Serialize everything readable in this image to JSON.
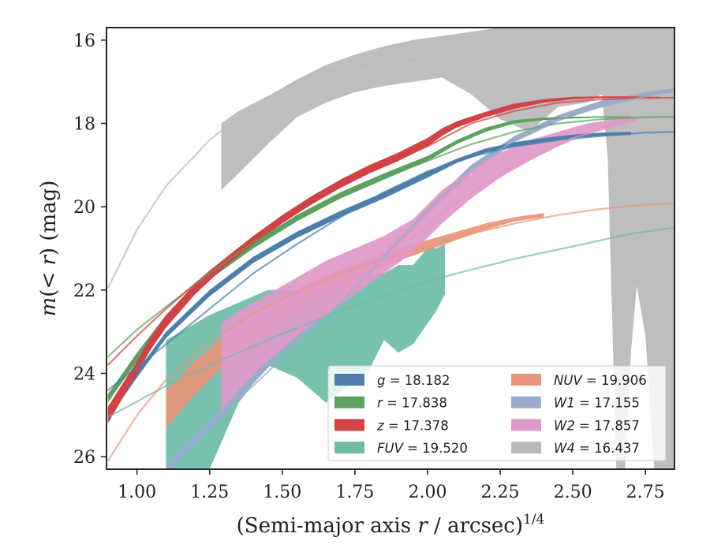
{
  "chart_data": {
    "type": "line",
    "xlabel": "(Semi-major axis r / arcsec)^1/4",
    "xlabel_parts": {
      "pre": "(Semi-major axis ",
      "var": "r",
      "mid": " / arcsec)",
      "sup": "1/4"
    },
    "ylabel": "m(< r) (mag)",
    "ylabel_parts": {
      "m": "m",
      "open": "(",
      "lt": "< ",
      "r": "r",
      "close": ") (mag)"
    },
    "xlim": [
      0.895,
      2.85
    ],
    "ylim": [
      26.3,
      15.7
    ],
    "y_inverted": true,
    "x_ticks": [
      1.0,
      1.25,
      1.5,
      1.75,
      2.0,
      2.25,
      2.5,
      2.75
    ],
    "x_tick_labels": [
      "1.00",
      "1.25",
      "1.50",
      "1.75",
      "2.00",
      "2.25",
      "2.50",
      "2.75"
    ],
    "y_ticks": [
      16,
      18,
      20,
      22,
      24,
      26
    ],
    "y_tick_labels": [
      "16",
      "18",
      "20",
      "22",
      "24",
      "26"
    ],
    "grid": false,
    "legend_position": "lower-right",
    "series": [
      {
        "name": "g = 18.182",
        "legend_var": "g",
        "legend_value": "18.182",
        "color": "#4c7fad",
        "fit": {
          "x": [
            0.9,
            1.0,
            1.1,
            1.25,
            1.4,
            1.55,
            1.7,
            1.85,
            2.0,
            2.15,
            2.3,
            2.45,
            2.6,
            2.75,
            2.85
          ],
          "y": [
            24.4,
            23.85,
            23.3,
            22.45,
            21.6,
            20.9,
            20.25,
            19.65,
            19.15,
            18.8,
            18.55,
            18.4,
            18.3,
            18.22,
            18.2
          ]
        },
        "band": {
          "x": [
            0.9,
            1.0,
            1.1,
            1.25,
            1.4,
            1.55,
            1.7,
            1.85,
            2.0,
            2.1,
            2.2,
            2.3,
            2.4,
            2.5,
            2.6,
            2.7
          ],
          "y_lo": [
            25.1,
            24.1,
            23.15,
            22.15,
            21.35,
            20.75,
            20.25,
            19.8,
            19.3,
            18.95,
            18.7,
            18.55,
            18.45,
            18.35,
            18.3,
            18.28
          ],
          "y_hi": [
            24.9,
            23.95,
            23.0,
            22.0,
            21.2,
            20.6,
            20.1,
            19.65,
            19.15,
            18.85,
            18.6,
            18.45,
            18.35,
            18.27,
            18.22,
            18.2
          ]
        }
      },
      {
        "name": "r = 17.838",
        "legend_var": "r",
        "legend_value": "17.838",
        "color": "#5ba25e",
        "fit": {
          "x": [
            0.9,
            1.0,
            1.1,
            1.25,
            1.4,
            1.55,
            1.7,
            1.85,
            2.0,
            2.15,
            2.3,
            2.45,
            2.6,
            2.75,
            2.85
          ],
          "y": [
            23.6,
            22.95,
            22.4,
            21.6,
            20.85,
            20.25,
            19.7,
            19.3,
            18.9,
            18.5,
            18.2,
            18.0,
            17.9,
            17.85,
            17.84
          ]
        },
        "band": {
          "x": [
            0.9,
            1.0,
            1.1,
            1.25,
            1.4,
            1.55,
            1.7,
            1.85,
            2.0,
            2.1,
            2.2,
            2.3,
            2.4,
            2.5,
            2.6,
            2.7
          ],
          "y_lo": [
            24.7,
            23.7,
            22.75,
            21.75,
            21.0,
            20.35,
            19.8,
            19.35,
            18.9,
            18.5,
            18.2,
            18.0,
            17.92,
            17.88,
            17.86,
            17.85
          ],
          "y_hi": [
            24.5,
            23.5,
            22.6,
            21.6,
            20.85,
            20.2,
            19.65,
            19.2,
            18.78,
            18.4,
            18.1,
            17.92,
            17.86,
            17.84,
            17.83,
            17.83
          ]
        }
      },
      {
        "name": "z = 17.378",
        "legend_var": "z",
        "legend_value": "17.378",
        "color": "#d24245",
        "fit": {
          "x": [
            0.9,
            1.0,
            1.1,
            1.25,
            1.4,
            1.55,
            1.7,
            1.85,
            2.0,
            2.15,
            2.3,
            2.45,
            2.6,
            2.75,
            2.85
          ],
          "y": [
            23.8,
            23.1,
            22.45,
            21.55,
            20.75,
            20.1,
            19.5,
            19.0,
            18.55,
            18.0,
            17.7,
            17.5,
            17.42,
            17.39,
            17.38
          ]
        },
        "band": {
          "x": [
            0.9,
            1.0,
            1.05,
            1.1,
            1.2,
            1.3,
            1.4,
            1.5,
            1.6,
            1.7,
            1.8,
            1.9,
            2.0,
            2.05,
            2.1,
            2.2,
            2.3,
            2.4,
            2.5,
            2.6,
            2.7,
            2.8
          ],
          "y_lo": [
            25.2,
            24.0,
            23.4,
            22.9,
            22.1,
            21.45,
            20.9,
            20.4,
            19.95,
            19.55,
            19.2,
            18.9,
            18.55,
            18.3,
            18.1,
            17.85,
            17.65,
            17.5,
            17.42,
            17.39,
            17.38,
            17.38
          ],
          "y_hi": [
            24.8,
            23.7,
            23.1,
            22.6,
            21.85,
            21.25,
            20.7,
            20.2,
            19.75,
            19.35,
            19.0,
            18.7,
            18.35,
            18.12,
            17.95,
            17.72,
            17.52,
            17.42,
            17.36,
            17.35,
            17.35,
            17.36
          ]
        }
      },
      {
        "name": "FUV = 19.520",
        "legend_var": "FUV",
        "legend_value": "19.520",
        "color": "#6dbca7",
        "fit": {
          "x": [
            0.9,
            1.1,
            1.3,
            1.5,
            1.7,
            1.9,
            2.1,
            2.3,
            2.5,
            2.7,
            2.85
          ],
          "y": [
            25.05,
            24.3,
            23.65,
            23.05,
            22.5,
            22.0,
            21.6,
            21.25,
            20.95,
            20.65,
            20.5
          ]
        },
        "band": {
          "x": [
            1.1,
            1.15,
            1.25,
            1.35,
            1.45,
            1.55,
            1.65,
            1.75,
            1.8,
            1.85,
            1.9,
            1.95,
            2.0,
            2.03,
            2.06
          ],
          "y_lo": [
            26.3,
            26.3,
            26.3,
            24.7,
            23.8,
            24.1,
            24.7,
            24.2,
            23.9,
            23.2,
            23.5,
            23.3,
            22.8,
            22.5,
            22.1
          ],
          "y_hi": [
            23.2,
            23.0,
            22.6,
            22.3,
            22.0,
            22.0,
            22.0,
            21.8,
            21.6,
            21.6,
            21.4,
            21.4,
            21.0,
            21.0,
            20.9
          ]
        }
      },
      {
        "name": "NUV = 19.906",
        "legend_var": "NUV",
        "legend_value": "19.906",
        "color": "#e8957a",
        "fit": {
          "x": [
            0.9,
            1.0,
            1.1,
            1.25,
            1.4,
            1.55,
            1.7,
            1.85,
            2.0,
            2.15,
            2.3,
            2.45,
            2.6,
            2.75,
            2.85
          ],
          "y": [
            26.1,
            25.0,
            24.15,
            23.25,
            22.55,
            22.05,
            21.6,
            21.25,
            20.95,
            20.65,
            20.4,
            20.2,
            20.05,
            19.95,
            19.92
          ]
        },
        "band": {
          "x": [
            1.1,
            1.2,
            1.3,
            1.4,
            1.5,
            1.6,
            1.7,
            1.8,
            1.9,
            2.0,
            2.1,
            2.2,
            2.3,
            2.4
          ],
          "y_lo": [
            25.3,
            24.5,
            23.8,
            23.2,
            22.7,
            22.25,
            21.9,
            21.6,
            21.3,
            21.05,
            20.8,
            20.55,
            20.35,
            20.25
          ],
          "y_hi": [
            24.4,
            23.7,
            23.1,
            22.6,
            22.15,
            21.8,
            21.5,
            21.25,
            21.0,
            20.8,
            20.6,
            20.4,
            20.25,
            20.15
          ]
        }
      },
      {
        "name": "W1 = 17.155",
        "legend_var": "W1",
        "legend_value": "17.155",
        "color": "#9aaccc",
        "fit": {
          "x": [
            1.1,
            1.25,
            1.4,
            1.55,
            1.7,
            1.85,
            2.0,
            2.15,
            2.3,
            2.45,
            2.6,
            2.75,
            2.85
          ],
          "y": [
            26.3,
            25.2,
            24.3,
            23.3,
            22.3,
            21.2,
            20.1,
            19.1,
            18.4,
            17.9,
            17.6,
            17.35,
            17.2
          ]
        },
        "band": {
          "x": [
            1.1,
            1.3,
            1.5,
            1.7,
            1.85,
            2.0,
            2.15,
            2.3,
            2.45,
            2.6,
            2.75,
            2.85
          ],
          "y_lo": [
            26.4,
            25.0,
            23.5,
            22.3,
            21.3,
            20.2,
            19.2,
            18.45,
            17.95,
            17.6,
            17.35,
            17.25
          ],
          "y_hi": [
            26.2,
            24.8,
            23.3,
            22.1,
            21.1,
            20.0,
            19.0,
            18.3,
            17.8,
            17.45,
            17.25,
            17.15
          ]
        }
      },
      {
        "name": "W2 = 17.857",
        "legend_var": "W2",
        "legend_value": "17.857",
        "color": "#df99c8",
        "fit": {
          "x": [
            1.3,
            1.5,
            1.7,
            1.9,
            2.1,
            2.3,
            2.5,
            2.7
          ],
          "y": [
            24.7,
            23.3,
            22.0,
            21.0,
            19.9,
            19.0,
            18.35,
            17.95
          ]
        },
        "band": {
          "x": [
            1.29,
            1.35,
            1.45,
            1.55,
            1.65,
            1.75,
            1.85,
            1.95,
            2.05,
            2.15,
            2.25,
            2.35,
            2.45,
            2.55,
            2.65,
            2.72
          ],
          "y_lo": [
            24.9,
            24.4,
            23.7,
            23.1,
            22.6,
            22.1,
            21.6,
            21.1,
            20.4,
            19.8,
            19.3,
            18.9,
            18.55,
            18.25,
            18.05,
            17.95
          ],
          "y_hi": [
            22.8,
            22.5,
            22.1,
            21.7,
            21.3,
            21.0,
            20.7,
            20.3,
            19.6,
            19.1,
            18.7,
            18.4,
            18.2,
            18.0,
            17.9,
            17.86
          ]
        }
      },
      {
        "name": "W4 = 16.437",
        "legend_var": "W4",
        "legend_value": "16.437",
        "color": "#b9b9b9",
        "fit": {
          "x": [
            0.9,
            1.0,
            1.1,
            1.25,
            1.4,
            1.55,
            1.7,
            1.85,
            2.0,
            2.2,
            2.4,
            2.6,
            2.75,
            2.85
          ],
          "y": [
            21.95,
            20.55,
            19.5,
            18.4,
            17.55,
            17.0,
            16.7,
            16.52,
            16.46,
            16.44,
            16.44,
            16.44,
            16.44,
            16.44
          ]
        },
        "band": {
          "x": [
            1.29,
            1.35,
            1.45,
            1.55,
            1.65,
            1.75,
            1.85,
            1.95,
            2.05,
            2.15,
            2.25,
            2.35,
            2.45,
            2.55,
            2.6,
            2.62,
            2.65,
            2.68,
            2.7,
            2.72,
            2.75,
            2.78,
            2.8,
            2.85
          ],
          "y_lo": [
            19.6,
            19.2,
            18.5,
            17.85,
            17.5,
            17.25,
            17.1,
            17.0,
            16.9,
            17.3,
            17.9,
            18.2,
            17.6,
            17.5,
            17.3,
            18.8,
            26.3,
            26.3,
            23.5,
            21.9,
            23.1,
            26.3,
            26.3,
            26.3
          ],
          "y_hi": [
            18.0,
            17.7,
            17.35,
            16.95,
            16.6,
            16.35,
            16.15,
            16.0,
            15.9,
            15.8,
            15.7,
            15.7,
            15.7,
            15.7,
            15.7,
            15.7,
            15.7,
            15.7,
            15.7,
            15.7,
            15.7,
            15.7,
            15.7,
            15.7
          ]
        }
      }
    ]
  }
}
